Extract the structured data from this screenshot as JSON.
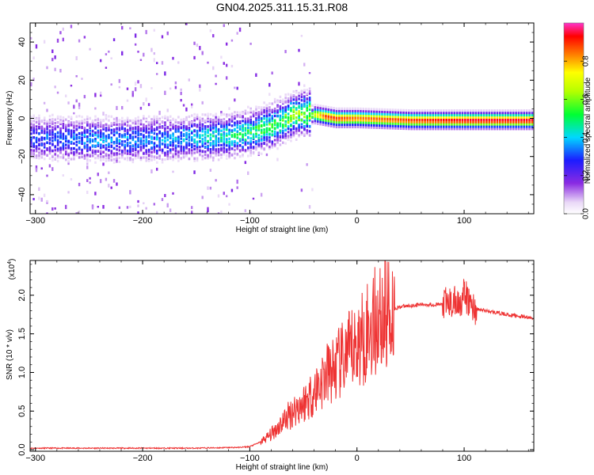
{
  "title": "GN04.2025.311.15.31.R08",
  "chart_data": [
    {
      "type": "heatmap",
      "xlabel": "Height of straight line (km)",
      "ylabel": "Frequency (Hz)",
      "xlim": [
        -305,
        165
      ],
      "ylim": [
        -50,
        50
      ],
      "x_ticks": [
        -300,
        -200,
        -100,
        0,
        100
      ],
      "y_ticks": [
        -40,
        -20,
        0,
        20,
        40
      ],
      "colorbar": {
        "label": "Normalized spectral amplitude",
        "range": [
          0,
          1
        ],
        "ticks": [
          0.0,
          0.2,
          0.4,
          0.6,
          0.8
        ],
        "tick_labels": [
          "0.0",
          "0.2",
          "0.4",
          "0.6",
          "0.8"
        ]
      },
      "ridge": {
        "x": [
          -300,
          -250,
          -200,
          -150,
          -120,
          -100,
          -80,
          -70,
          -60,
          -50,
          -40,
          -30,
          -20,
          0,
          50,
          100,
          165
        ],
        "frequency_hz": [
          -10,
          -11,
          -11,
          -10,
          -9,
          -7,
          -4,
          -1,
          2,
          3,
          2,
          1,
          0,
          0,
          -1,
          -1,
          -1
        ],
        "amplitude": [
          0.3,
          0.35,
          0.35,
          0.4,
          0.45,
          0.5,
          0.55,
          0.55,
          0.6,
          0.6,
          0.7,
          0.9,
          0.9,
          0.85,
          0.9,
          0.95,
          0.95
        ]
      }
    },
    {
      "type": "line",
      "xlabel": "Height of straight line (km)",
      "ylabel": "SNR (10 * v/v)",
      "y_multiplier": "(x10",
      "y_multiplier_exp": "4",
      "y_multiplier_close": ")",
      "xlim": [
        -305,
        165
      ],
      "ylim": [
        -0.02,
        2.45
      ],
      "x_ticks": [
        -300,
        -200,
        -100,
        0,
        100
      ],
      "y_ticks": [
        0.0,
        0.5,
        1.0,
        1.5,
        2.0
      ],
      "y_tick_labels": [
        "0.0",
        "0.5",
        "1.0",
        "1.5",
        "2.0"
      ],
      "series": [
        {
          "name": "SNR",
          "color": "#ee3333",
          "x": [
            -305,
            -250,
            -200,
            -150,
            -110,
            -100,
            -90,
            -80,
            -70,
            -60,
            -50,
            -40,
            -30,
            -20,
            -10,
            0,
            10,
            20,
            30,
            40,
            60,
            80,
            90,
            95,
            100,
            105,
            110,
            120,
            140,
            165
          ],
          "y": [
            0.02,
            0.02,
            0.02,
            0.02,
            0.03,
            0.04,
            0.1,
            0.2,
            0.35,
            0.5,
            0.6,
            0.75,
            0.95,
            1.05,
            1.2,
            1.35,
            1.55,
            1.7,
            1.8,
            1.85,
            1.88,
            1.88,
            1.9,
            1.9,
            2.0,
            1.9,
            1.82,
            1.8,
            1.75,
            1.7
          ]
        }
      ]
    }
  ]
}
